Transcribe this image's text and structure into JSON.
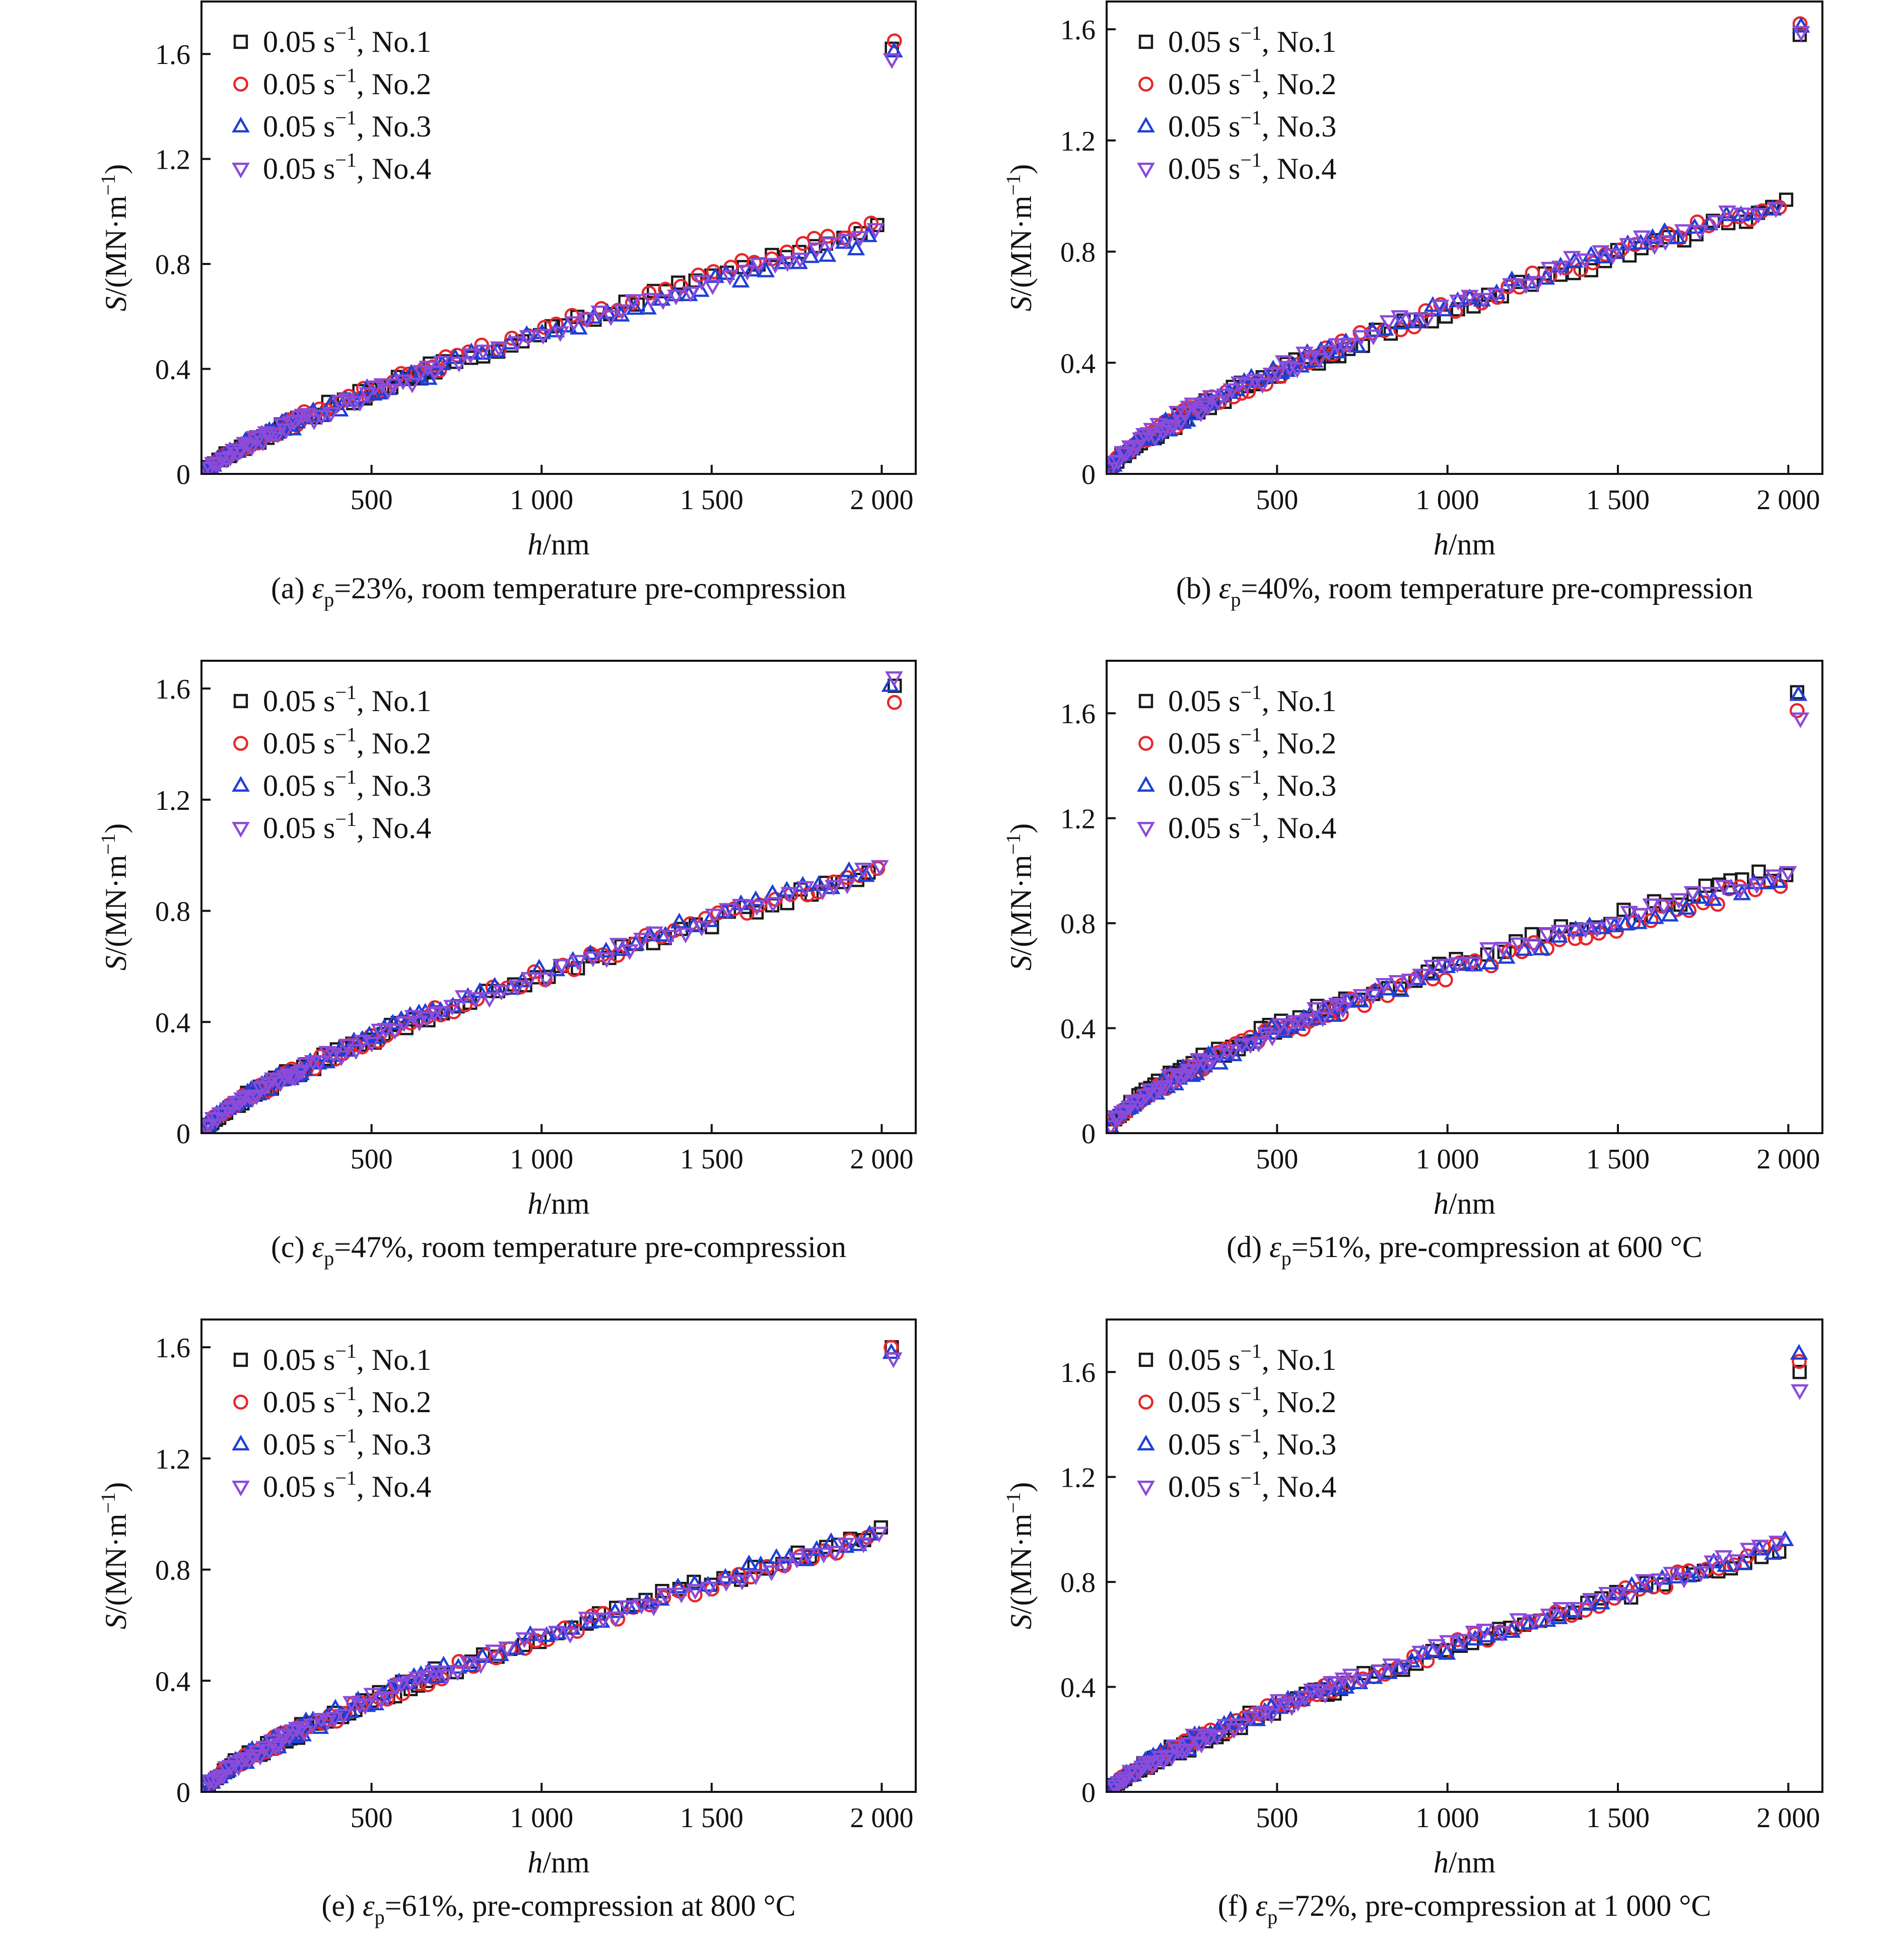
{
  "figure": {
    "description_free": true
  },
  "chart_data": [
    {
      "type": "scatter",
      "title": "",
      "caption": {
        "prefix": "(a) ",
        "symbol": "ε",
        "sub": "p",
        "rest": "=23%, room temperature pre-compression"
      },
      "xlabel": {
        "var": "h",
        "unit": "/nm"
      },
      "ylabel": {
        "var": "S",
        "unit": "/(MN·m",
        "sup": "−1",
        "close": ")"
      },
      "xlim": [
        0,
        2100
      ],
      "ylim": [
        0,
        1.8
      ],
      "xticks": [
        500,
        1000,
        1500,
        2000
      ],
      "xtick_labels": [
        "500",
        "1 000",
        "1 500",
        "2 000"
      ],
      "yticks": [
        0,
        0.4,
        0.8,
        1.2,
        1.6
      ],
      "ytick_labels": [
        "0",
        "0.4",
        "0.8",
        "1.2",
        "1.6"
      ],
      "legend_position": "top-left",
      "series": [
        {
          "name": "0.05 s−1, No.1",
          "rate": "0.05 s",
          "sup": "−1",
          "label": ", No.1",
          "marker": "square",
          "color": "#1a1a1a",
          "k": 0.94,
          "p": 0.785,
          "end": 1.62,
          "jit": 0.011
        },
        {
          "name": "0.05 s−1, No.2",
          "rate": "0.05 s",
          "sup": "−1",
          "label": ", No.2",
          "marker": "circle",
          "color": "#e8262a",
          "k": 0.95,
          "p": 0.79,
          "end": 1.65,
          "jit": 0.011
        },
        {
          "name": "0.05 s−1, No.3",
          "rate": "0.05 s",
          "sup": "−1",
          "label": ", No.3",
          "marker": "triangle-up",
          "color": "#1f3fd6",
          "k": 0.905,
          "p": 0.775,
          "end": 1.61,
          "jit": 0.011
        },
        {
          "name": "0.05 s−1, No.4",
          "rate": "0.05 s",
          "sup": "−1",
          "label": ", No.4",
          "marker": "triangle-down",
          "color": "#8b4bd8",
          "k": 0.915,
          "p": 0.778,
          "end": 1.58,
          "jit": 0.011
        }
      ]
    },
    {
      "type": "scatter",
      "title": "",
      "caption": {
        "prefix": "(b) ",
        "symbol": "ε",
        "sub": "p",
        "rest": "=40%, room temperature pre-compression"
      },
      "xlabel": {
        "var": "h",
        "unit": "/nm"
      },
      "ylabel": {
        "var": "S",
        "unit": "/(MN·m",
        "sup": "−1",
        "close": ")"
      },
      "xlim": [
        0,
        2100
      ],
      "ylim": [
        0,
        1.7
      ],
      "xticks": [
        500,
        1000,
        1500,
        2000
      ],
      "xtick_labels": [
        "500",
        "1 000",
        "1 500",
        "2 000"
      ],
      "yticks": [
        0,
        0.4,
        0.8,
        1.2,
        1.6
      ],
      "ytick_labels": [
        "0",
        "0.4",
        "0.8",
        "1.2",
        "1.6"
      ],
      "legend_position": "top-left",
      "series": [
        {
          "name": "0.05 s−1, No.1",
          "rate": "0.05 s",
          "sup": "−1",
          "label": ", No.1",
          "marker": "square",
          "color": "#1a1a1a",
          "k": 0.965,
          "p": 0.71,
          "end": 1.58,
          "jit": 0.012
        },
        {
          "name": "0.05 s−1, No.2",
          "rate": "0.05 s",
          "sup": "−1",
          "label": ", No.2",
          "marker": "circle",
          "color": "#e8262a",
          "k": 0.975,
          "p": 0.71,
          "end": 1.62,
          "jit": 0.012
        },
        {
          "name": "0.05 s−1, No.3",
          "rate": "0.05 s",
          "sup": "−1",
          "label": ", No.3",
          "marker": "triangle-up",
          "color": "#1f3fd6",
          "k": 0.98,
          "p": 0.71,
          "end": 1.61,
          "jit": 0.012
        },
        {
          "name": "0.05 s−1, No.4",
          "rate": "0.05 s",
          "sup": "−1",
          "label": ", No.4",
          "marker": "triangle-down",
          "color": "#8b4bd8",
          "k": 0.99,
          "p": 0.71,
          "end": 1.59,
          "jit": 0.012
        }
      ]
    },
    {
      "type": "scatter",
      "title": "",
      "caption": {
        "prefix": "(c) ",
        "symbol": "ε",
        "sub": "p",
        "rest": "=47%, room temperature pre-compression"
      },
      "xlabel": {
        "var": "h",
        "unit": "/nm"
      },
      "ylabel": {
        "var": "S",
        "unit": "/(MN·m",
        "sup": "−1",
        "close": ")"
      },
      "xlim": [
        0,
        2100
      ],
      "ylim": [
        0,
        1.7
      ],
      "xticks": [
        500,
        1000,
        1500,
        2000
      ],
      "xtick_labels": [
        "500",
        "1 000",
        "1 500",
        "2 000"
      ],
      "yticks": [
        0,
        0.4,
        0.8,
        1.2,
        1.6
      ],
      "ytick_labels": [
        "0",
        "0.4",
        "0.8",
        "1.2",
        "1.6"
      ],
      "legend_position": "top-left",
      "series": [
        {
          "name": "0.05 s−1, No.1",
          "rate": "0.05 s",
          "sup": "−1",
          "label": ", No.1",
          "marker": "square",
          "color": "#1a1a1a",
          "k": 0.94,
          "p": 0.735,
          "end": 1.61,
          "jit": 0.01
        },
        {
          "name": "0.05 s−1, No.2",
          "rate": "0.05 s",
          "sup": "−1",
          "label": ", No.2",
          "marker": "circle",
          "color": "#e8262a",
          "k": 0.945,
          "p": 0.735,
          "end": 1.55,
          "jit": 0.01
        },
        {
          "name": "0.05 s−1, No.3",
          "rate": "0.05 s",
          "sup": "−1",
          "label": ", No.3",
          "marker": "triangle-up",
          "color": "#1f3fd6",
          "k": 0.955,
          "p": 0.735,
          "end": 1.61,
          "jit": 0.01
        },
        {
          "name": "0.05 s−1, No.4",
          "rate": "0.05 s",
          "sup": "−1",
          "label": ", No.4",
          "marker": "triangle-down",
          "color": "#8b4bd8",
          "k": 0.95,
          "p": 0.735,
          "end": 1.64,
          "jit": 0.01
        }
      ]
    },
    {
      "type": "scatter",
      "title": "",
      "caption": {
        "prefix": "(d) ",
        "symbol": "ε",
        "sub": "p",
        "rest": "=51%, pre-compression at 600 °C"
      },
      "xlabel": {
        "var": "h",
        "unit": "/nm"
      },
      "ylabel": {
        "var": "S",
        "unit": "/(MN·m",
        "sup": "−1",
        "close": ")"
      },
      "xlim": [
        0,
        2100
      ],
      "ylim": [
        0,
        1.8
      ],
      "xticks": [
        500,
        1000,
        1500,
        2000
      ],
      "xtick_labels": [
        "500",
        "1 000",
        "1 500",
        "2 000"
      ],
      "yticks": [
        0,
        0.4,
        0.8,
        1.2,
        1.6
      ],
      "ytick_labels": [
        "0",
        "0.4",
        "0.8",
        "1.2",
        "1.6"
      ],
      "legend_position": "top-left",
      "series": [
        {
          "name": "0.05 s−1, No.1",
          "rate": "0.05 s",
          "sup": "−1",
          "label": ", No.1",
          "marker": "square",
          "color": "#1a1a1a",
          "k": 1.0,
          "p": 0.66,
          "end": 1.68,
          "jit": 0.012
        },
        {
          "name": "0.05 s−1, No.2",
          "rate": "0.05 s",
          "sup": "−1",
          "label": ", No.2",
          "marker": "circle",
          "color": "#e8262a",
          "k": 0.965,
          "p": 0.665,
          "end": 1.61,
          "jit": 0.012
        },
        {
          "name": "0.05 s−1, No.3",
          "rate": "0.05 s",
          "sup": "−1",
          "label": ", No.3",
          "marker": "triangle-up",
          "color": "#1f3fd6",
          "k": 0.965,
          "p": 0.665,
          "end": 1.67,
          "jit": 0.012
        },
        {
          "name": "0.05 s−1, No.4",
          "rate": "0.05 s",
          "sup": "−1",
          "label": ", No.4",
          "marker": "triangle-down",
          "color": "#8b4bd8",
          "k": 0.995,
          "p": 0.66,
          "end": 1.58,
          "jit": 0.012
        }
      ]
    },
    {
      "type": "scatter",
      "title": "",
      "caption": {
        "prefix": "(e) ",
        "symbol": "ε",
        "sub": "p",
        "rest": "=61%, pre-compression at 800 °C"
      },
      "xlabel": {
        "var": "h",
        "unit": "/nm"
      },
      "ylabel": {
        "var": "S",
        "unit": "/(MN·m",
        "sup": "−1",
        "close": ")"
      },
      "xlim": [
        0,
        2100
      ],
      "ylim": [
        0,
        1.7
      ],
      "xticks": [
        500,
        1000,
        1500,
        2000
      ],
      "xtick_labels": [
        "500",
        "1 000",
        "1 500",
        "2 000"
      ],
      "yticks": [
        0,
        0.4,
        0.8,
        1.2,
        1.6
      ],
      "ytick_labels": [
        "0",
        "0.4",
        "0.8",
        "1.2",
        "1.6"
      ],
      "legend_position": "top-left",
      "series": [
        {
          "name": "0.05 s−1, No.1",
          "rate": "0.05 s",
          "sup": "−1",
          "label": ", No.1",
          "marker": "square",
          "color": "#1a1a1a",
          "k": 0.935,
          "p": 0.745,
          "end": 1.6,
          "jit": 0.011
        },
        {
          "name": "0.05 s−1, No.2",
          "rate": "0.05 s",
          "sup": "−1",
          "label": ", No.2",
          "marker": "circle",
          "color": "#e8262a",
          "k": 0.925,
          "p": 0.745,
          "end": 1.6,
          "jit": 0.011
        },
        {
          "name": "0.05 s−1, No.3",
          "rate": "0.05 s",
          "sup": "−1",
          "label": ", No.3",
          "marker": "triangle-up",
          "color": "#1f3fd6",
          "k": 0.935,
          "p": 0.745,
          "end": 1.58,
          "jit": 0.011
        },
        {
          "name": "0.05 s−1, No.4",
          "rate": "0.05 s",
          "sup": "−1",
          "label": ", No.4",
          "marker": "triangle-down",
          "color": "#8b4bd8",
          "k": 0.925,
          "p": 0.745,
          "end": 1.56,
          "jit": 0.011
        }
      ]
    },
    {
      "type": "scatter",
      "title": "",
      "caption": {
        "prefix": "(f) ",
        "symbol": "ε",
        "sub": "p",
        "rest": "=72%, pre-compression at 1 000 °C"
      },
      "xlabel": {
        "var": "h",
        "unit": "/nm"
      },
      "ylabel": {
        "var": "S",
        "unit": "/(MN·m",
        "sup": "−1",
        "close": ")"
      },
      "xlim": [
        0,
        2100
      ],
      "ylim": [
        0,
        1.8
      ],
      "xticks": [
        500,
        1000,
        1500,
        2000
      ],
      "xtick_labels": [
        "500",
        "1 000",
        "1 500",
        "2 000"
      ],
      "yticks": [
        0,
        0.4,
        0.8,
        1.2,
        1.6
      ],
      "ytick_labels": [
        "0",
        "0.4",
        "0.8",
        "1.2",
        "1.6"
      ],
      "legend_position": "top-left",
      "series": [
        {
          "name": "0.05 s−1, No.1",
          "rate": "0.05 s",
          "sup": "−1",
          "label": ", No.1",
          "marker": "square",
          "color": "#1a1a1a",
          "k": 0.925,
          "p": 0.77,
          "end": 1.6,
          "jit": 0.011
        },
        {
          "name": "0.05 s−1, No.2",
          "rate": "0.05 s",
          "sup": "−1",
          "label": ", No.2",
          "marker": "circle",
          "color": "#e8262a",
          "k": 0.935,
          "p": 0.77,
          "end": 1.64,
          "jit": 0.011
        },
        {
          "name": "0.05 s−1, No.3",
          "rate": "0.05 s",
          "sup": "−1",
          "label": ", No.3",
          "marker": "triangle-up",
          "color": "#1f3fd6",
          "k": 0.94,
          "p": 0.77,
          "end": 1.67,
          "jit": 0.011
        },
        {
          "name": "0.05 s−1, No.4",
          "rate": "0.05 s",
          "sup": "−1",
          "label": ", No.4",
          "marker": "triangle-down",
          "color": "#8b4bd8",
          "k": 0.945,
          "p": 0.77,
          "end": 1.53,
          "jit": 0.011
        }
      ]
    }
  ]
}
